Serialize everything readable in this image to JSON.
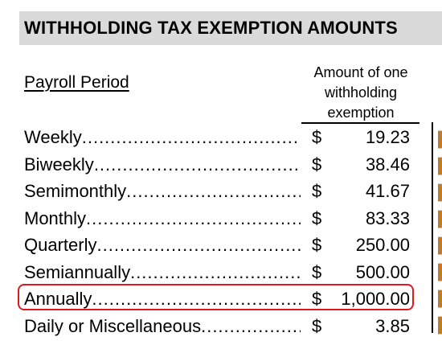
{
  "title": "WITHHOLDING TAX EXEMPTION AMOUNTS",
  "columns": {
    "period_header": "Payroll Period",
    "amount_header_lines": [
      "Amount of one",
      "withholding",
      "exemption"
    ]
  },
  "rows": [
    {
      "period": "Weekly",
      "dollar": "$",
      "value": "19.23"
    },
    {
      "period": "Biweekly",
      "dollar": "$",
      "value": "38.46"
    },
    {
      "period": "Semimonthly",
      "dollar": "$",
      "value": "41.67"
    },
    {
      "period": "Monthly",
      "dollar": "$",
      "value": "83.33"
    },
    {
      "period": "Quarterly",
      "dollar": "$",
      "value": "250.00"
    },
    {
      "period": "Semiannually",
      "dollar": "$",
      "value": "500.00"
    },
    {
      "period": "Annually",
      "dollar": "$",
      "value": "1,000.00",
      "highlighted": true
    },
    {
      "period": "Daily or Miscellaneous",
      "dollar": "$",
      "value": "3.85"
    }
  ],
  "colors": {
    "title_bar": "#dadada",
    "highlight_border": "#e0191f",
    "cropped_text": "#c27a2a"
  }
}
